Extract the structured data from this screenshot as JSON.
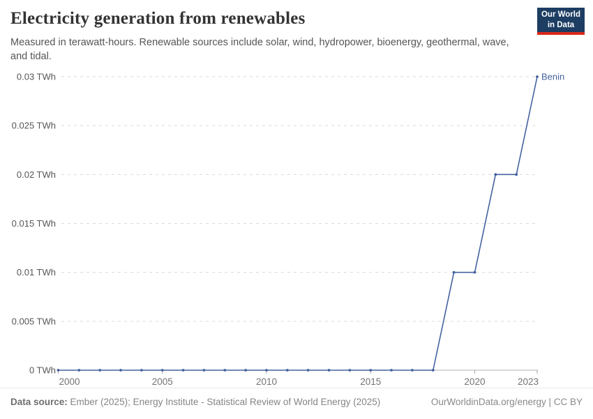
{
  "header": {
    "title": "Electricity generation from renewables",
    "subtitle": "Measured in terawatt-hours. Renewable sources include solar, wind, hydropower, bioenergy, geothermal, wave, and tidal.",
    "logo": {
      "line1": "Our World",
      "line2": "in Data"
    }
  },
  "chart_data": {
    "type": "line",
    "title": "Electricity generation from renewables",
    "xlabel": "",
    "ylabel": "TWh",
    "xlim": [
      2000,
      2023
    ],
    "ylim": [
      0,
      0.03
    ],
    "grid": "horizontal-dashed",
    "legend_position": "end-of-line",
    "x": [
      2000,
      2001,
      2002,
      2003,
      2004,
      2005,
      2006,
      2007,
      2008,
      2009,
      2010,
      2011,
      2012,
      2013,
      2014,
      2015,
      2016,
      2017,
      2018,
      2019,
      2020,
      2021,
      2022,
      2023
    ],
    "series": [
      {
        "name": "Benin",
        "color": "#44639f",
        "values": [
          0,
          0,
          0,
          0,
          0,
          0,
          0,
          0,
          0,
          0,
          0,
          0,
          0,
          0,
          0,
          0,
          0,
          0,
          0,
          0.01,
          0.01,
          0.02,
          0.02,
          0.03
        ]
      }
    ],
    "y_ticks": [
      {
        "value": 0,
        "label": "0 TWh"
      },
      {
        "value": 0.005,
        "label": "0.005 TWh"
      },
      {
        "value": 0.01,
        "label": "0.01 TWh"
      },
      {
        "value": 0.015,
        "label": "0.015 TWh"
      },
      {
        "value": 0.02,
        "label": "0.02 TWh"
      },
      {
        "value": 0.025,
        "label": "0.025 TWh"
      },
      {
        "value": 0.03,
        "label": "0.03 TWh"
      }
    ],
    "x_ticks": [
      {
        "value": 2000,
        "label": "2000"
      },
      {
        "value": 2005,
        "label": "2005"
      },
      {
        "value": 2010,
        "label": "2010"
      },
      {
        "value": 2015,
        "label": "2015"
      },
      {
        "value": 2020,
        "label": "2020"
      },
      {
        "value": 2023,
        "label": "2023"
      }
    ]
  },
  "colors": {
    "line": "#44639f",
    "entity_label": "#44639f",
    "gridline": "#dadada",
    "axis": "#b3b3b3",
    "tick_mark": "#a6a6a6",
    "y_tick_label": "#565656",
    "x_tick_label": "#737373",
    "logo_bg": "#1d3d63",
    "logo_accent": "#d92a1c"
  },
  "footer": {
    "source_label": "Data source:",
    "source_text": " Ember (2025); Energy Institute - Statistical Review of World Energy (2025)",
    "right_text": "OurWorldinData.org/energy | CC BY"
  }
}
